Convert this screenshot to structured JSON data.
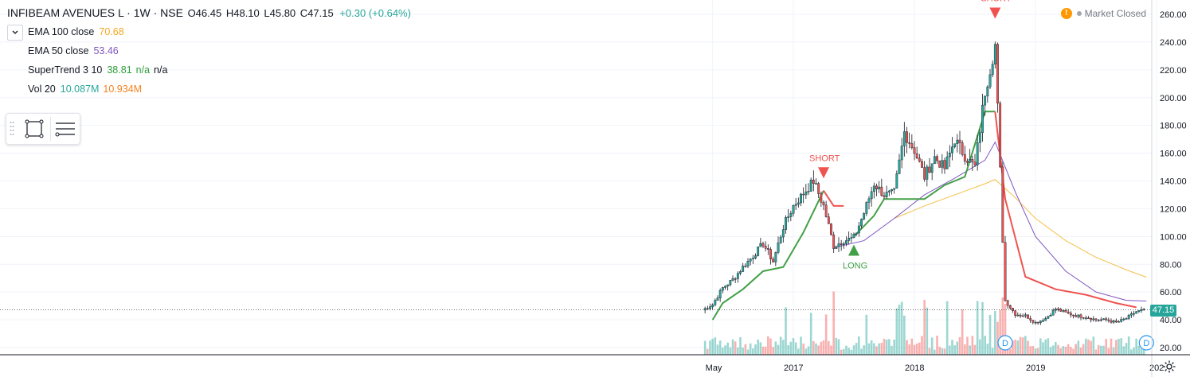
{
  "header": {
    "symbol": "INFIBEAM AVENUES L · 1W · NSE",
    "ohlc": {
      "o": "O46.45",
      "h": "H48.10",
      "l": "L45.80",
      "c": "C47.15"
    },
    "change": "+0.30 (+0.64%)"
  },
  "indicators": [
    {
      "name": "EMA 100 close",
      "values": [
        {
          "text": "70.68",
          "color": "#f5a623"
        }
      ]
    },
    {
      "name": "EMA 50 close",
      "values": [
        {
          "text": "53.46",
          "color": "#7e57c2"
        }
      ]
    },
    {
      "name": "SuperTrend 3 10",
      "values": [
        {
          "text": "38.81",
          "color": "#2e9f3a"
        },
        {
          "text": "n/a",
          "color": "#2e9f3a"
        },
        {
          "text": "n/a",
          "color": "#131722"
        }
      ]
    },
    {
      "name": "Vol 20",
      "values": [
        {
          "text": "10.087M",
          "color": "#26a69a"
        },
        {
          "text": "10.934M",
          "color": "#f5821f"
        }
      ]
    }
  ],
  "market_status": "Market Closed",
  "last_price": "47.15",
  "colors": {
    "up": "#26a69a",
    "down": "#ef5350",
    "ema100": "#f5c04a",
    "ema50": "#7e57c2",
    "supertrend_up": "#43a047",
    "supertrend_down": "#ef5350"
  },
  "chart_data": {
    "type": "candlestick",
    "title": "INFIBEAM AVENUES L · 1W · NSE",
    "y_axis": {
      "ticks": [
        "20.00",
        "40.00",
        "60.00",
        "80.00",
        "100.00",
        "120.00",
        "140.00",
        "160.00",
        "180.00",
        "200.00",
        "220.00",
        "240.00",
        "260.00"
      ],
      "range": [
        15,
        265
      ]
    },
    "x_axis": {
      "ticks": [
        "May",
        "2017",
        "2018",
        "2019",
        "202"
      ],
      "range": [
        "2016-04",
        "2020-01"
      ]
    },
    "grid": true,
    "close_series": [
      [
        "2016-04",
        47
      ],
      [
        "2016-05",
        51
      ],
      [
        "2016-06",
        63
      ],
      [
        "2016-07",
        69
      ],
      [
        "2016-08",
        78
      ],
      [
        "2016-09",
        86
      ],
      [
        "2016-10",
        95
      ],
      [
        "2016-11",
        82
      ],
      [
        "2016-12",
        107
      ],
      [
        "2017-01",
        122
      ],
      [
        "2017-02",
        131
      ],
      [
        "2017-03",
        140
      ],
      [
        "2017-04",
        122
      ],
      [
        "2017-05",
        93
      ],
      [
        "2017-06",
        97
      ],
      [
        "2017-07",
        99
      ],
      [
        "2017-08",
        117
      ],
      [
        "2017-09",
        138
      ],
      [
        "2017-10",
        130
      ],
      [
        "2017-11",
        131
      ],
      [
        "2017-12",
        175
      ],
      [
        "2018-01",
        162
      ],
      [
        "2018-02",
        143
      ],
      [
        "2018-03",
        157
      ],
      [
        "2018-04",
        149
      ],
      [
        "2018-05",
        170
      ],
      [
        "2018-06",
        158
      ],
      [
        "2018-07",
        150
      ],
      [
        "2018-08",
        205
      ],
      [
        "2018-09",
        238
      ],
      [
        "2018-10",
        54
      ],
      [
        "2018-11",
        44
      ],
      [
        "2018-12",
        43
      ],
      [
        "2019-01",
        38
      ],
      [
        "2019-02",
        41
      ],
      [
        "2019-03",
        48
      ],
      [
        "2019-04",
        45
      ],
      [
        "2019-05",
        43
      ],
      [
        "2019-06",
        42
      ],
      [
        "2019-07",
        40
      ],
      [
        "2019-08",
        40
      ],
      [
        "2019-09",
        38
      ],
      [
        "2019-10",
        41
      ],
      [
        "2019-11",
        46
      ],
      [
        "2019-12",
        47
      ]
    ],
    "ema50": [
      [
        "2017-05",
        92
      ],
      [
        "2017-08",
        97
      ],
      [
        "2017-11",
        113
      ],
      [
        "2018-02",
        130
      ],
      [
        "2018-05",
        142
      ],
      [
        "2018-08",
        155
      ],
      [
        "2018-09",
        168
      ],
      [
        "2018-11",
        132
      ],
      [
        "2019-01",
        100
      ],
      [
        "2019-04",
        75
      ],
      [
        "2019-07",
        60
      ],
      [
        "2019-10",
        54
      ],
      [
        "2019-12",
        53.5
      ]
    ],
    "ema100": [
      [
        "2017-11",
        113
      ],
      [
        "2018-02",
        122
      ],
      [
        "2018-05",
        130
      ],
      [
        "2018-08",
        138
      ],
      [
        "2018-09",
        141
      ],
      [
        "2018-11",
        128
      ],
      [
        "2019-01",
        113
      ],
      [
        "2019-04",
        97
      ],
      [
        "2019-07",
        85
      ],
      [
        "2019-10",
        76
      ],
      [
        "2019-12",
        70.7
      ]
    ],
    "supertrend": [
      [
        "2016-05",
        40
      ],
      [
        "2016-06",
        52
      ],
      [
        "2016-08",
        62
      ],
      [
        "2016-10",
        75
      ],
      [
        "2016-12",
        78
      ],
      [
        "2017-02",
        103
      ],
      [
        "2017-03",
        118
      ],
      [
        "2017-04",
        133
      ],
      [
        "2017-05",
        122
      ],
      [
        "2017-06",
        122
      ],
      [
        "2017-07",
        100
      ],
      [
        "2017-09",
        115
      ],
      [
        "2017-10",
        127
      ],
      [
        "2017-12",
        127
      ],
      [
        "2018-02",
        127
      ],
      [
        "2018-04",
        137
      ],
      [
        "2018-06",
        143
      ],
      [
        "2018-08",
        190
      ],
      [
        "2018-09",
        190
      ],
      [
        "2018-10",
        127
      ],
      [
        "2018-12",
        71
      ],
      [
        "2019-03",
        62
      ],
      [
        "2019-06",
        58
      ],
      [
        "2019-09",
        52
      ],
      [
        "2019-11",
        49
      ]
    ],
    "volume": {
      "description": "weekly volume histogram along bottom of price pane"
    },
    "annotations": [
      {
        "label": "SHORT",
        "date": "2017-04",
        "price": 143,
        "type": "short"
      },
      {
        "label": "LONG",
        "date": "2017-07",
        "price": 93,
        "type": "long"
      },
      {
        "label": "SHORT",
        "date": "2018-09",
        "price": 258,
        "type": "short"
      },
      {
        "label": "D",
        "date": "2018-10",
        "type": "dividend"
      },
      {
        "label": "D",
        "date": "2019-12",
        "type": "dividend"
      }
    ]
  }
}
